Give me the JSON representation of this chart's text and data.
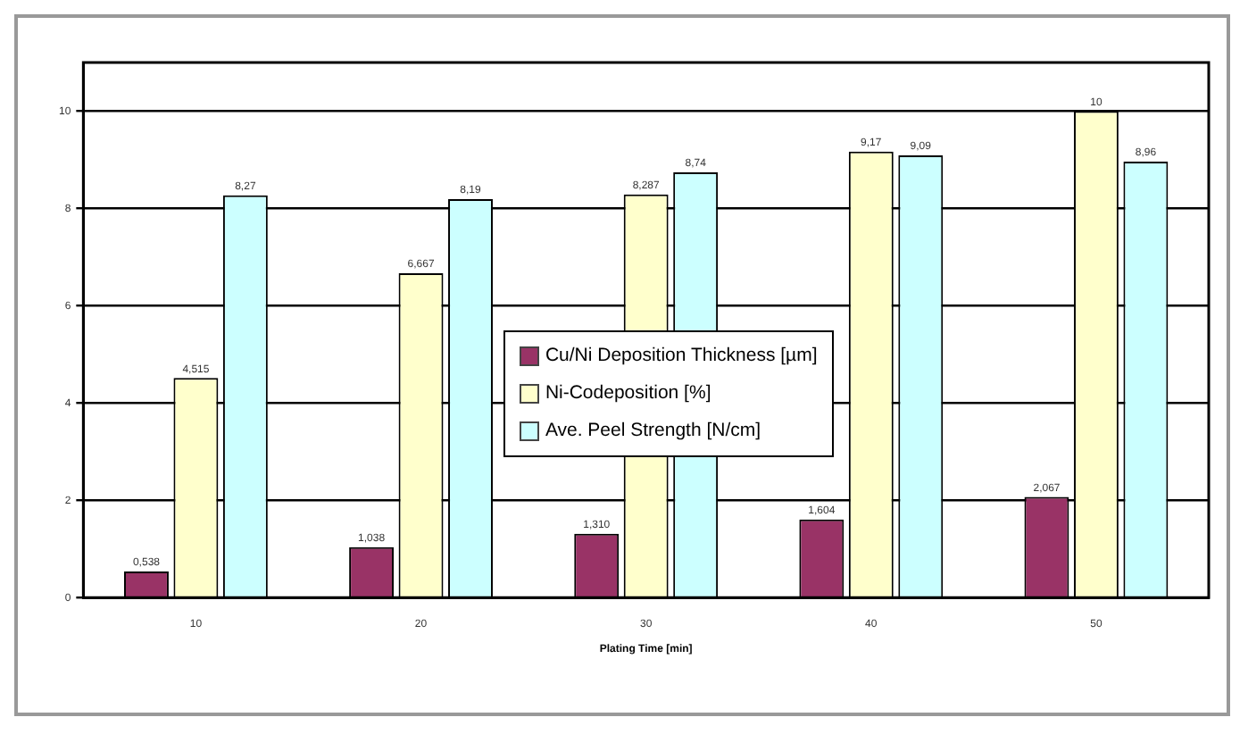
{
  "chart_data": {
    "type": "bar",
    "xlabel": "Plating Time [min]",
    "categories": [
      "10",
      "20",
      "30",
      "40",
      "50"
    ],
    "series": [
      {
        "name": "Cu/Ni Deposition Thickness [µm]",
        "color": "#993366",
        "values": [
          0.538,
          1.038,
          1.31,
          1.604,
          2.067
        ],
        "value_labels": [
          "0,538",
          "1,038",
          "1,310",
          "1,604",
          "2,067"
        ]
      },
      {
        "name": "Ni-Codeposition [%]",
        "color": "#ffffcc",
        "values": [
          4.515,
          6.667,
          8.287,
          9.17,
          10
        ],
        "value_labels": [
          "4,515",
          "6,667",
          "8,287",
          "9,17",
          "10"
        ]
      },
      {
        "name": "Ave. Peel Strength [N/cm]",
        "color": "#ccffff",
        "values": [
          8.27,
          8.19,
          8.74,
          9.09,
          8.96
        ],
        "value_labels": [
          "8,27",
          "8,19",
          "8,74",
          "9,09",
          "8,96"
        ]
      }
    ],
    "ylim": [
      0,
      11
    ],
    "yticks": [
      0,
      2,
      4,
      6,
      8,
      10
    ],
    "grid": "y",
    "legend": "center"
  }
}
